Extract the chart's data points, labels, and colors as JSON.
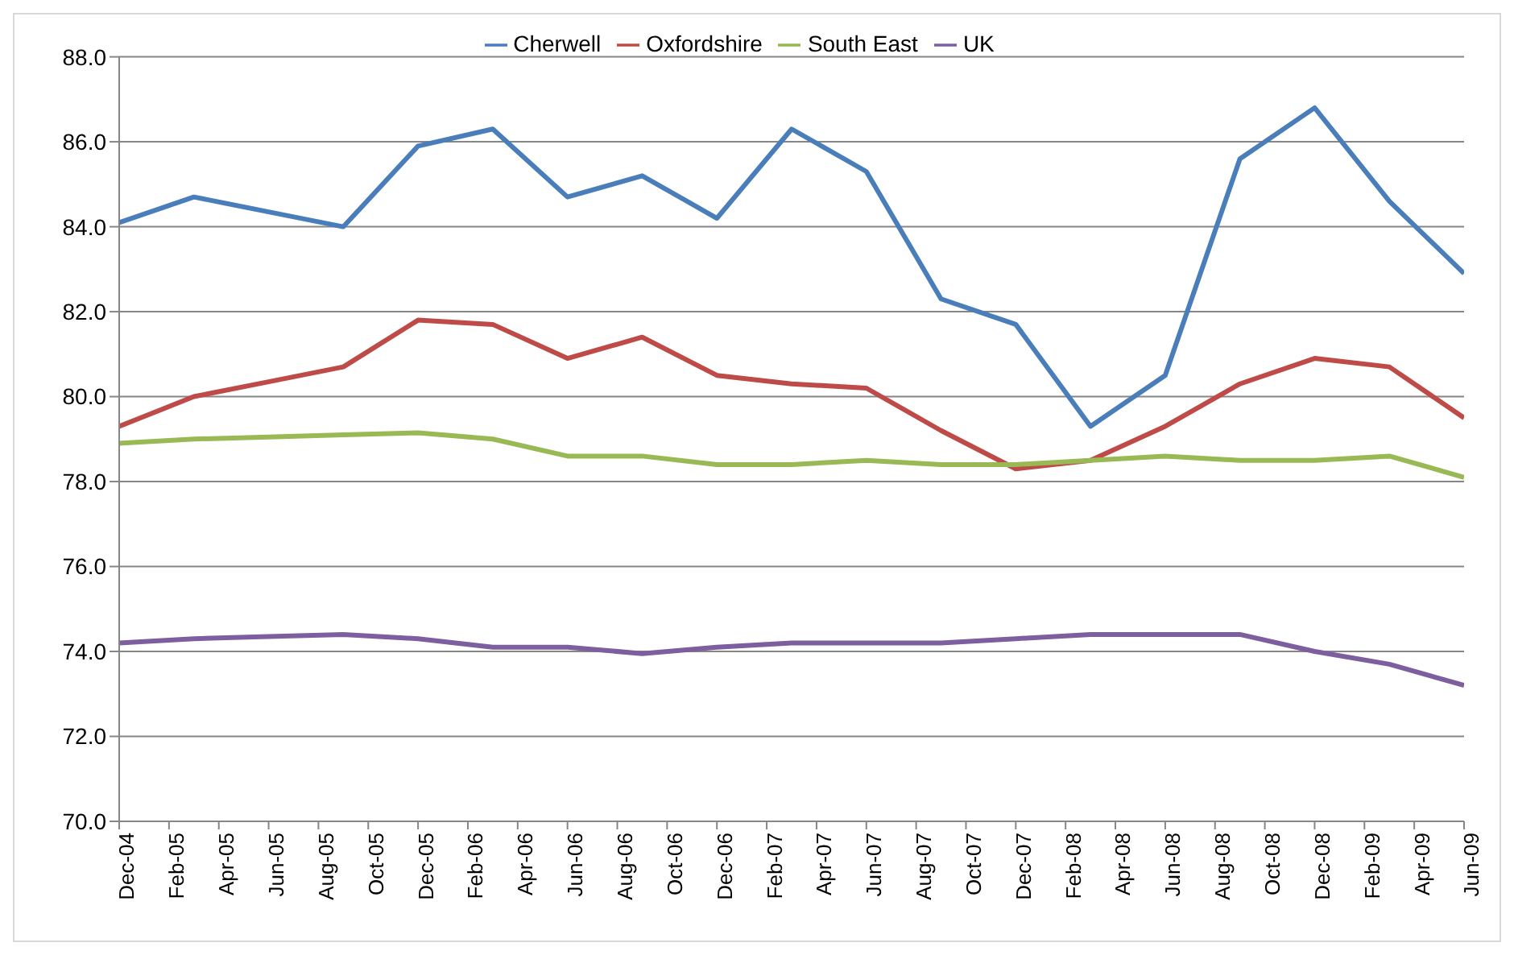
{
  "chart_data": {
    "type": "line",
    "x": [
      "2004-12",
      "2005-03",
      "2005-06",
      "2005-09",
      "2005-12",
      "2006-03",
      "2006-06",
      "2006-09",
      "2006-12",
      "2007-03",
      "2007-06",
      "2007-09",
      "2007-12",
      "2008-03",
      "2008-06",
      "2008-09",
      "2008-12",
      "2009-03",
      "2009-06"
    ],
    "series": [
      {
        "name": "Cherwell",
        "color": "#4a7ebb",
        "values": [
          84.1,
          84.7,
          84.35,
          84.0,
          85.9,
          86.3,
          84.7,
          85.2,
          84.2,
          86.3,
          85.3,
          82.3,
          81.7,
          79.3,
          80.5,
          85.6,
          86.8,
          84.6,
          82.9
        ]
      },
      {
        "name": "Oxfordshire",
        "color": "#be4b48",
        "values": [
          79.3,
          80.0,
          80.35,
          80.7,
          81.8,
          81.7,
          80.9,
          81.4,
          80.5,
          80.3,
          80.2,
          79.2,
          78.3,
          78.5,
          79.3,
          80.3,
          80.9,
          80.7,
          79.5
        ]
      },
      {
        "name": "South East",
        "color": "#98b954",
        "values": [
          78.9,
          79.0,
          79.05,
          79.1,
          79.15,
          79.0,
          78.6,
          78.6,
          78.4,
          78.4,
          78.5,
          78.4,
          78.4,
          78.5,
          78.6,
          78.5,
          78.5,
          78.6,
          78.1
        ]
      },
      {
        "name": "UK",
        "color": "#7d5fa0",
        "values": [
          74.2,
          74.3,
          74.35,
          74.4,
          74.3,
          74.1,
          74.1,
          73.95,
          74.1,
          74.2,
          74.2,
          74.2,
          74.3,
          74.4,
          74.4,
          74.4,
          74.0,
          73.7,
          73.2
        ]
      }
    ],
    "xlim": [
      "2004-12",
      "2009-06"
    ],
    "xticks": [
      {
        "value": "2004-12",
        "label": "Dec-04"
      },
      {
        "value": "2005-02",
        "label": "Feb-05"
      },
      {
        "value": "2005-04",
        "label": "Apr-05"
      },
      {
        "value": "2005-06",
        "label": "Jun-05"
      },
      {
        "value": "2005-08",
        "label": "Aug-05"
      },
      {
        "value": "2005-10",
        "label": "Oct-05"
      },
      {
        "value": "2005-12",
        "label": "Dec-05"
      },
      {
        "value": "2006-02",
        "label": "Feb-06"
      },
      {
        "value": "2006-04",
        "label": "Apr-06"
      },
      {
        "value": "2006-06",
        "label": "Jun-06"
      },
      {
        "value": "2006-08",
        "label": "Aug-06"
      },
      {
        "value": "2006-10",
        "label": "Oct-06"
      },
      {
        "value": "2006-12",
        "label": "Dec-06"
      },
      {
        "value": "2007-02",
        "label": "Feb-07"
      },
      {
        "value": "2007-04",
        "label": "Apr-07"
      },
      {
        "value": "2007-06",
        "label": "Jun-07"
      },
      {
        "value": "2007-08",
        "label": "Aug-07"
      },
      {
        "value": "2007-10",
        "label": "Oct-07"
      },
      {
        "value": "2007-12",
        "label": "Dec-07"
      },
      {
        "value": "2008-02",
        "label": "Feb-08"
      },
      {
        "value": "2008-04",
        "label": "Apr-08"
      },
      {
        "value": "2008-06",
        "label": "Jun-08"
      },
      {
        "value": "2008-08",
        "label": "Aug-08"
      },
      {
        "value": "2008-10",
        "label": "Oct-08"
      },
      {
        "value": "2008-12",
        "label": "Dec-08"
      },
      {
        "value": "2009-02",
        "label": "Feb-09"
      },
      {
        "value": "2009-04",
        "label": "Apr-09"
      },
      {
        "value": "2009-06",
        "label": "Jun-09"
      }
    ],
    "ylim": [
      70,
      88
    ],
    "yticks": [
      {
        "value": 70,
        "label": "70.0"
      },
      {
        "value": 72,
        "label": "72.0"
      },
      {
        "value": 74,
        "label": "74.0"
      },
      {
        "value": 76,
        "label": "76.0"
      },
      {
        "value": 78,
        "label": "78.0"
      },
      {
        "value": 80,
        "label": "80.0"
      },
      {
        "value": 82,
        "label": "82.0"
      },
      {
        "value": 84,
        "label": "84.0"
      },
      {
        "value": 86,
        "label": "86.0"
      },
      {
        "value": 88,
        "label": "88.0"
      }
    ],
    "grid": "y",
    "legend": "top",
    "marker": "none",
    "line_style": "solid"
  }
}
